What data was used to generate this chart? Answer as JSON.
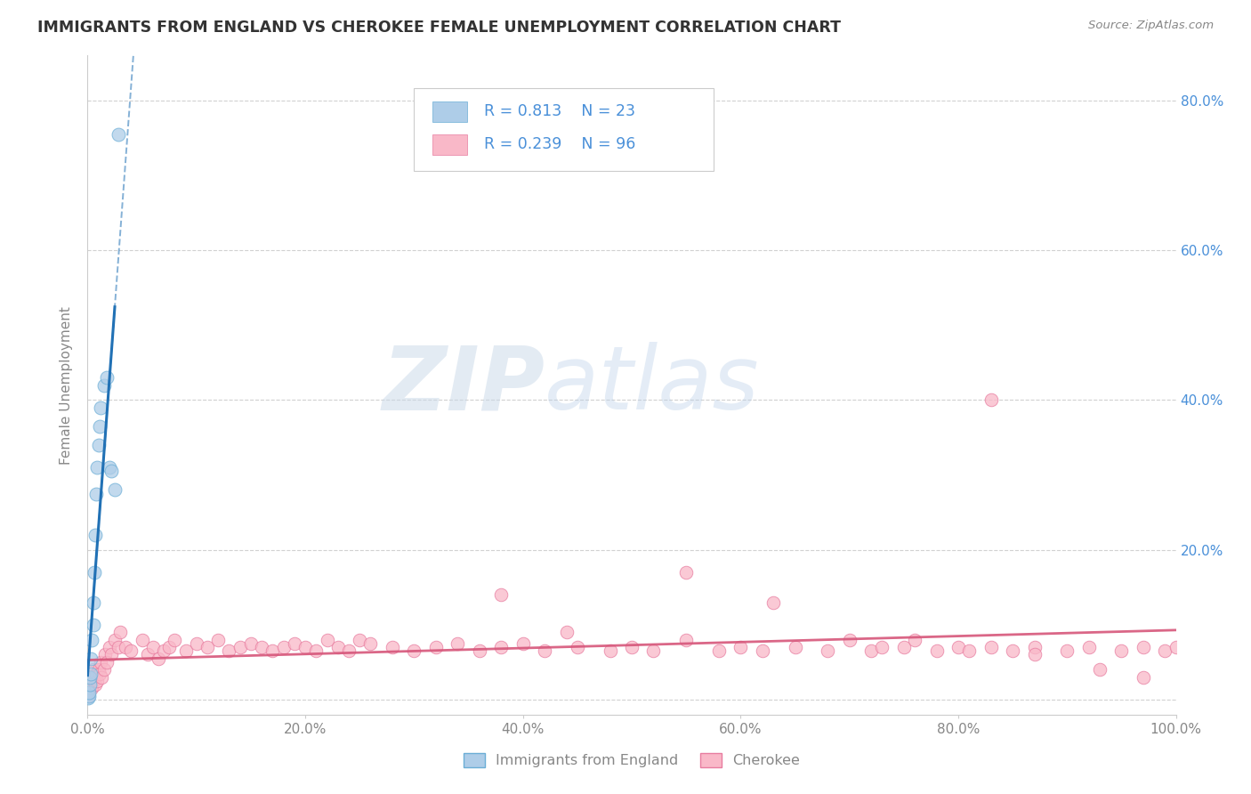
{
  "title": "IMMIGRANTS FROM ENGLAND VS CHEROKEE FEMALE UNEMPLOYMENT CORRELATION CHART",
  "source": "Source: ZipAtlas.com",
  "ylabel": "Female Unemployment",
  "xlim": [
    0,
    1.0
  ],
  "ylim": [
    -0.02,
    0.86
  ],
  "xtick_vals": [
    0.0,
    0.2,
    0.4,
    0.6,
    0.8,
    1.0
  ],
  "xtick_labels": [
    "0.0%",
    "20.0%",
    "40.0%",
    "60.0%",
    "80.0%",
    "100.0%"
  ],
  "ytick_vals": [
    0.0,
    0.2,
    0.4,
    0.6,
    0.8
  ],
  "ytick_labels": [
    "",
    "20.0%",
    "40.0%",
    "60.0%",
    "80.0%"
  ],
  "blue_fill": "#aecde8",
  "blue_edge": "#6baed6",
  "pink_fill": "#f9b8c8",
  "pink_edge": "#e87da0",
  "blue_line_color": "#2171b5",
  "pink_line_color": "#d6567a",
  "legend_label1": "Immigrants from England",
  "legend_label2": "Cherokee",
  "watermark_zip": "ZIP",
  "watermark_atlas": "atlas",
  "background_color": "#ffffff",
  "grid_color": "#cccccc",
  "title_color": "#333333",
  "axis_label_color": "#888888",
  "right_ytick_color": "#4a90d9",
  "legend_text_color": "#4a90d9",
  "blue_x": [
    0.0005,
    0.001,
    0.0015,
    0.002,
    0.002,
    0.003,
    0.003,
    0.004,
    0.005,
    0.005,
    0.006,
    0.007,
    0.008,
    0.009,
    0.01,
    0.011,
    0.012,
    0.015,
    0.018,
    0.02,
    0.022,
    0.025,
    0.028
  ],
  "blue_y": [
    0.002,
    0.005,
    0.01,
    0.02,
    0.03,
    0.035,
    0.055,
    0.08,
    0.1,
    0.13,
    0.17,
    0.22,
    0.275,
    0.31,
    0.34,
    0.365,
    0.39,
    0.42,
    0.43,
    0.31,
    0.305,
    0.28,
    0.755
  ],
  "pink_x": [
    0.0005,
    0.001,
    0.001,
    0.002,
    0.002,
    0.003,
    0.003,
    0.004,
    0.005,
    0.005,
    0.006,
    0.007,
    0.008,
    0.009,
    0.01,
    0.011,
    0.012,
    0.013,
    0.015,
    0.016,
    0.018,
    0.02,
    0.022,
    0.025,
    0.028,
    0.03,
    0.035,
    0.04,
    0.05,
    0.055,
    0.06,
    0.065,
    0.07,
    0.075,
    0.08,
    0.09,
    0.1,
    0.11,
    0.12,
    0.13,
    0.14,
    0.15,
    0.16,
    0.17,
    0.18,
    0.19,
    0.2,
    0.21,
    0.22,
    0.23,
    0.24,
    0.25,
    0.26,
    0.28,
    0.3,
    0.32,
    0.34,
    0.36,
    0.38,
    0.4,
    0.42,
    0.45,
    0.48,
    0.5,
    0.52,
    0.55,
    0.58,
    0.6,
    0.62,
    0.65,
    0.68,
    0.7,
    0.72,
    0.75,
    0.78,
    0.8,
    0.83,
    0.85,
    0.87,
    0.9,
    0.92,
    0.95,
    0.97,
    0.99,
    1.0,
    0.83,
    0.38,
    0.44,
    0.55,
    0.63,
    0.73,
    0.76,
    0.81,
    0.87,
    0.93,
    0.97
  ],
  "pink_y": [
    0.005,
    0.01,
    0.02,
    0.015,
    0.025,
    0.02,
    0.03,
    0.015,
    0.025,
    0.04,
    0.03,
    0.02,
    0.035,
    0.025,
    0.04,
    0.035,
    0.05,
    0.03,
    0.04,
    0.06,
    0.05,
    0.07,
    0.06,
    0.08,
    0.07,
    0.09,
    0.07,
    0.065,
    0.08,
    0.06,
    0.07,
    0.055,
    0.065,
    0.07,
    0.08,
    0.065,
    0.075,
    0.07,
    0.08,
    0.065,
    0.07,
    0.075,
    0.07,
    0.065,
    0.07,
    0.075,
    0.07,
    0.065,
    0.08,
    0.07,
    0.065,
    0.08,
    0.075,
    0.07,
    0.065,
    0.07,
    0.075,
    0.065,
    0.07,
    0.075,
    0.065,
    0.07,
    0.065,
    0.07,
    0.065,
    0.08,
    0.065,
    0.07,
    0.065,
    0.07,
    0.065,
    0.08,
    0.065,
    0.07,
    0.065,
    0.07,
    0.4,
    0.065,
    0.07,
    0.065,
    0.07,
    0.065,
    0.07,
    0.065,
    0.07,
    0.07,
    0.14,
    0.09,
    0.17,
    0.13,
    0.07,
    0.08,
    0.065,
    0.06,
    0.04,
    0.03
  ]
}
